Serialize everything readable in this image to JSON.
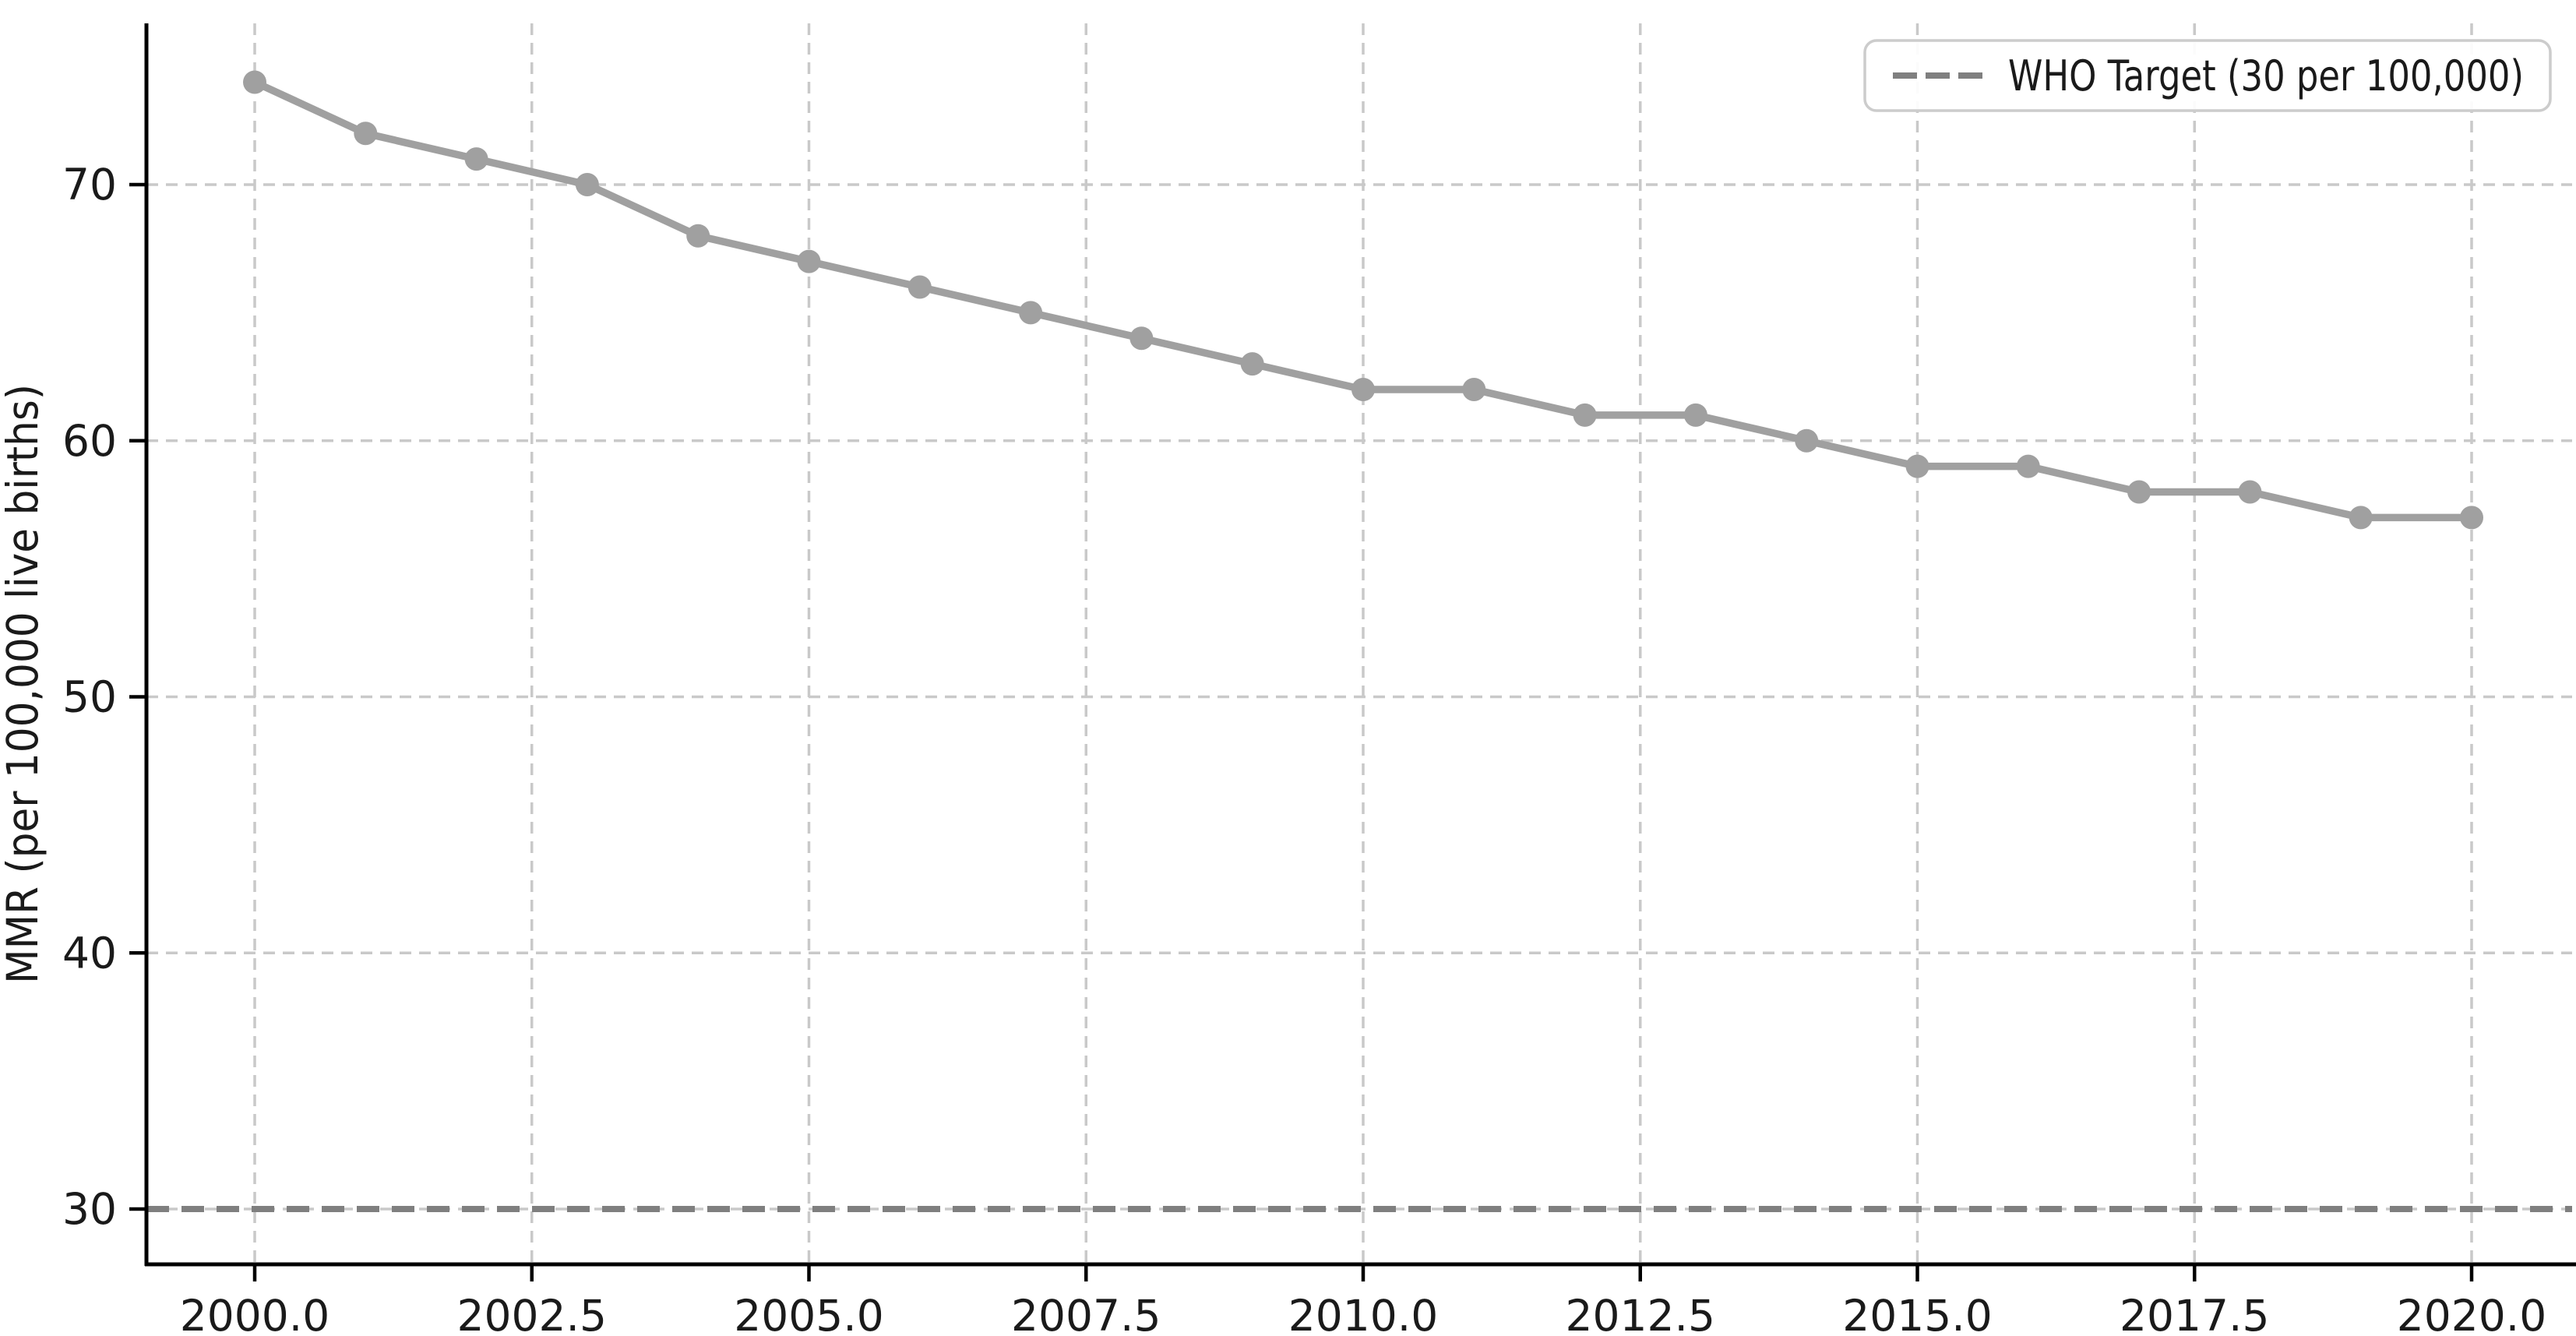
{
  "figure": {
    "ylabel": "MMR (per 100,000 live births)",
    "legend_label": "WHO Target (30 per 100,000)"
  },
  "chart_data": {
    "type": "line",
    "title": "",
    "xlabel": "",
    "ylabel": "MMR (per 100,000 live births)",
    "x": [
      2000,
      2001,
      2002,
      2003,
      2004,
      2005,
      2006,
      2007,
      2008,
      2009,
      2010,
      2011,
      2012,
      2013,
      2014,
      2015,
      2016,
      2017,
      2018,
      2019,
      2020
    ],
    "series": [
      {
        "name": "MMR per 100,000 live births",
        "values": [
          74,
          72,
          71,
          70,
          68,
          67,
          66,
          65,
          64,
          63,
          62,
          62,
          61,
          61,
          60,
          59,
          59,
          58,
          58,
          57,
          57
        ]
      }
    ],
    "target_line": {
      "value": 30,
      "label": "WHO Target (30 per 100,000)",
      "style": "dashed"
    },
    "x_tick_values": [
      2000.0,
      2002.5,
      2005.0,
      2007.5,
      2010.0,
      2012.5,
      2015.0,
      2017.5,
      2020.0
    ],
    "x_tick_labels": [
      "2000.0",
      "2002.5",
      "2005.0",
      "2007.5",
      "2010.0",
      "2012.5",
      "2015.0",
      "2017.5",
      "2020.0"
    ],
    "y_tick_values": [
      30,
      40,
      50,
      60,
      70
    ],
    "y_tick_labels": [
      "30",
      "40",
      "50",
      "60",
      "70"
    ],
    "xlim": [
      1999.0,
      2020.9
    ],
    "ylim": [
      27.8,
      76.3
    ],
    "grid": true,
    "legend_position": "upper right",
    "colors": {
      "series": "#a0a0a0",
      "marker": "#a0a0a0",
      "target": "#7f7f7f",
      "grid": "#c9c9c9",
      "axis": "#000000",
      "legend_border": "#cccccc",
      "background": "#ffffff"
    }
  }
}
